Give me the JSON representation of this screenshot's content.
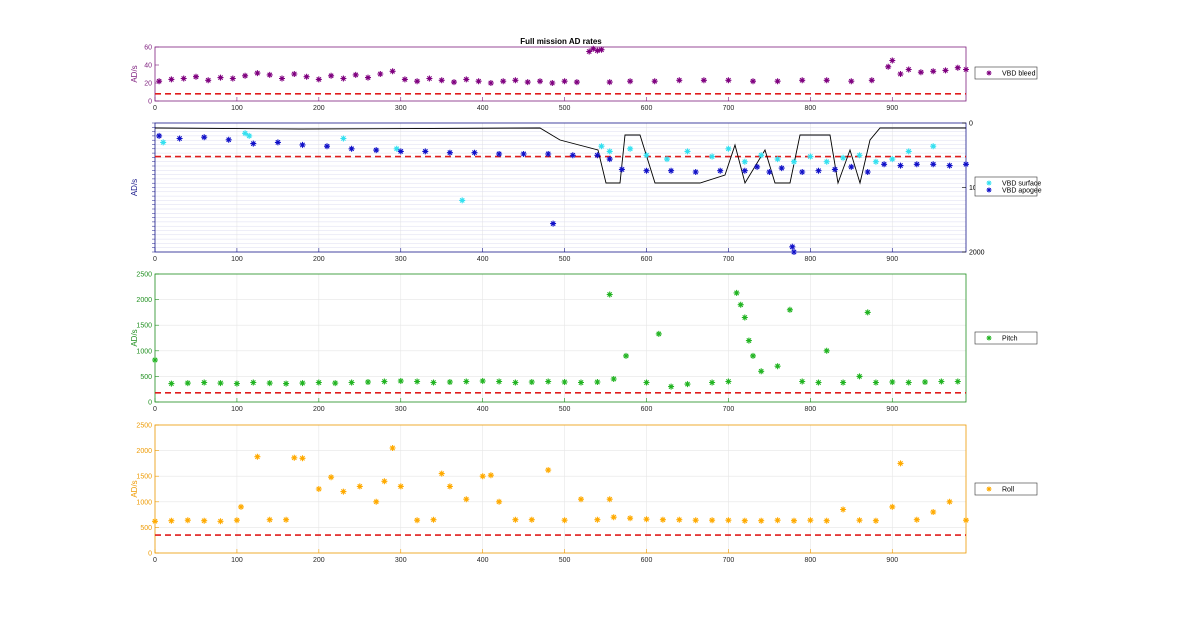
{
  "figure_title": "Full mission AD rates",
  "chart_data": [
    {
      "type": "scatter",
      "title": "Full mission AD rates",
      "ylabel": "AD/s",
      "xlim": [
        0,
        990
      ],
      "ylim": [
        0,
        60
      ],
      "yticks": [
        "0",
        "20",
        "40",
        "60"
      ],
      "xticks": [
        "0",
        "100",
        "200",
        "300",
        "400",
        "500",
        "600",
        "700",
        "800",
        "900"
      ],
      "grid": false,
      "legend_position": "right",
      "axis_color": "#7e1e7e",
      "threshold": 8,
      "series": [
        {
          "name": "VBD bleed",
          "color": "#7f007f",
          "x": [
            5,
            20,
            35,
            50,
            65,
            80,
            95,
            110,
            125,
            140,
            155,
            170,
            185,
            200,
            215,
            230,
            245,
            260,
            275,
            290,
            305,
            320,
            335,
            350,
            365,
            380,
            395,
            410,
            425,
            440,
            455,
            470,
            485,
            500,
            515,
            530,
            535,
            540,
            545,
            555,
            580,
            610,
            640,
            670,
            700,
            730,
            760,
            790,
            820,
            850,
            875,
            895,
            900,
            910,
            920,
            935,
            950,
            965,
            980,
            990
          ],
          "y": [
            22,
            24,
            25,
            27,
            23,
            26,
            25,
            28,
            31,
            29,
            25,
            30,
            27,
            24,
            28,
            25,
            29,
            26,
            30,
            33,
            24,
            22,
            25,
            23,
            21,
            24,
            22,
            20,
            22,
            23,
            21,
            22,
            20,
            22,
            21,
            55,
            58,
            56,
            57,
            21,
            22,
            22,
            23,
            23,
            23,
            22,
            22,
            23,
            23,
            22,
            23,
            38,
            45,
            30,
            35,
            32,
            33,
            34,
            37,
            35
          ]
        }
      ]
    },
    {
      "type": "scatter",
      "ylabel": "AD/s",
      "xlim": [
        0,
        990
      ],
      "xticks": [
        "0",
        "100",
        "200",
        "300",
        "400",
        "500",
        "600",
        "700",
        "800",
        "900"
      ],
      "grid": true,
      "legend_position": "right",
      "axis_color": "#1a1a8c",
      "right_axis_ticks": [
        "0",
        "1000",
        "2000"
      ],
      "series": [
        {
          "name": "VBD surface",
          "color": "#33e0f0",
          "x": [
            10,
            110,
            115,
            230,
            295,
            375,
            545,
            555,
            580,
            600,
            625,
            650,
            680,
            700,
            720,
            740,
            760,
            780,
            800,
            820,
            840,
            860,
            880,
            900,
            920,
            950
          ],
          "y": [
            0.85,
            0.92,
            0.9,
            0.88,
            0.8,
            0.4,
            0.82,
            0.78,
            0.8,
            0.75,
            0.72,
            0.78,
            0.74,
            0.8,
            0.7,
            0.75,
            0.72,
            0.7,
            0.74,
            0.7,
            0.73,
            0.75,
            0.7,
            0.72,
            0.78,
            0.82
          ]
        },
        {
          "name": "VBD apogee",
          "color": "#1010c8",
          "x": [
            5,
            30,
            60,
            90,
            120,
            150,
            180,
            210,
            240,
            270,
            300,
            330,
            360,
            390,
            420,
            450,
            480,
            486,
            510,
            540,
            555,
            570,
            600,
            630,
            660,
            690,
            720,
            735,
            750,
            765,
            778,
            780,
            790,
            810,
            830,
            850,
            870,
            890,
            910,
            930,
            950,
            970,
            990
          ],
          "y": [
            0.9,
            0.88,
            0.89,
            0.87,
            0.84,
            0.85,
            0.83,
            0.82,
            0.8,
            0.79,
            0.78,
            0.78,
            0.77,
            0.77,
            0.76,
            0.76,
            0.76,
            0.22,
            0.75,
            0.75,
            0.72,
            0.64,
            0.63,
            0.63,
            0.62,
            0.63,
            0.63,
            0.66,
            0.62,
            0.65,
            0.04,
            0.0,
            0.62,
            0.63,
            0.64,
            0.66,
            0.62,
            0.68,
            0.67,
            0.68,
            0.68,
            0.67,
            0.68
          ]
        }
      ]
    },
    {
      "type": "scatter",
      "ylabel": "AD/s",
      "xlim": [
        0,
        990
      ],
      "ylim": [
        0,
        2500
      ],
      "yticks": [
        "0",
        "500",
        "1000",
        "1500",
        "2000",
        "2500"
      ],
      "xticks": [
        "0",
        "100",
        "200",
        "300",
        "400",
        "500",
        "600",
        "700",
        "800",
        "900"
      ],
      "grid": true,
      "legend_position": "right",
      "axis_color": "#1f8f1f",
      "threshold": 180,
      "series": [
        {
          "name": "Pitch",
          "color": "#22b422",
          "x": [
            0,
            20,
            40,
            60,
            80,
            100,
            120,
            140,
            160,
            180,
            200,
            220,
            240,
            260,
            280,
            300,
            320,
            340,
            360,
            380,
            400,
            420,
            440,
            460,
            480,
            500,
            520,
            540,
            555,
            560,
            575,
            600,
            615,
            630,
            650,
            680,
            700,
            710,
            715,
            720,
            725,
            730,
            740,
            760,
            775,
            790,
            810,
            820,
            840,
            860,
            870,
            880,
            900,
            920,
            940,
            960,
            980
          ],
          "y": [
            820,
            360,
            370,
            380,
            370,
            360,
            380,
            370,
            360,
            370,
            380,
            370,
            380,
            390,
            400,
            410,
            400,
            380,
            390,
            400,
            410,
            400,
            380,
            390,
            400,
            390,
            380,
            390,
            2100,
            450,
            900,
            380,
            1330,
            300,
            350,
            380,
            400,
            2130,
            1900,
            1650,
            1200,
            900,
            600,
            700,
            1800,
            400,
            380,
            1000,
            380,
            500,
            1750,
            380,
            390,
            380,
            390,
            400,
            400
          ]
        }
      ]
    },
    {
      "type": "scatter",
      "ylabel": "AD/s",
      "xlim": [
        0,
        990
      ],
      "ylim": [
        0,
        2500
      ],
      "yticks": [
        "0",
        "500",
        "1000",
        "1500",
        "2000",
        "2500"
      ],
      "xticks": [
        "0",
        "100",
        "200",
        "300",
        "400",
        "500",
        "600",
        "700",
        "800",
        "900"
      ],
      "grid": true,
      "legend_position": "right",
      "axis_color": "#ee9a00",
      "threshold": 350,
      "series": [
        {
          "name": "Roll",
          "color": "#ffaa00",
          "x": [
            0,
            20,
            40,
            60,
            80,
            100,
            105,
            125,
            140,
            160,
            170,
            180,
            200,
            215,
            230,
            250,
            270,
            280,
            290,
            300,
            320,
            340,
            350,
            360,
            380,
            400,
            410,
            420,
            440,
            460,
            480,
            500,
            520,
            540,
            555,
            560,
            580,
            600,
            620,
            640,
            660,
            680,
            700,
            720,
            740,
            760,
            780,
            800,
            820,
            840,
            860,
            880,
            900,
            910,
            930,
            950,
            970,
            990
          ],
          "y": [
            620,
            630,
            640,
            630,
            620,
            640,
            900,
            1880,
            650,
            650,
            1860,
            1850,
            1250,
            1480,
            1200,
            1300,
            1000,
            1400,
            2050,
            1300,
            640,
            650,
            1550,
            1300,
            1050,
            1500,
            1520,
            1000,
            650,
            650,
            1620,
            640,
            1050,
            650,
            1050,
            700,
            680,
            660,
            650,
            650,
            640,
            640,
            640,
            630,
            630,
            640,
            630,
            640,
            630,
            850,
            640,
            630,
            900,
            1750,
            650,
            800,
            1000,
            640
          ]
        }
      ]
    }
  ]
}
